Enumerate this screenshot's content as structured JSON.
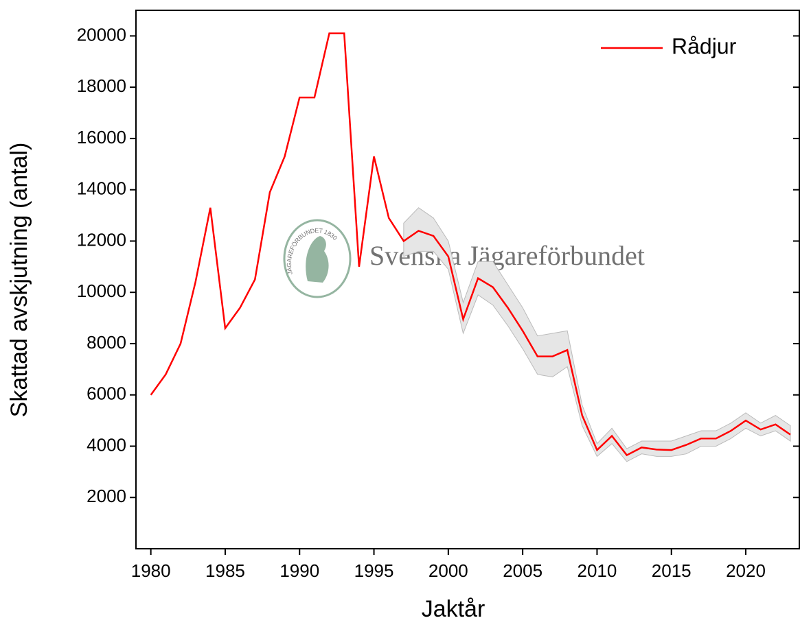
{
  "chart_data": {
    "type": "line",
    "xlabel": "Jaktår",
    "ylabel": "Skattad avskjutning (antal)",
    "watermark": "Svenska Jägareförbundet",
    "watermark_logo": "JÄGAREFÖRBUNDET 1830",
    "x": [
      1980,
      1981,
      1982,
      1983,
      1984,
      1985,
      1986,
      1987,
      1988,
      1989,
      1990,
      1991,
      1992,
      1993,
      1994,
      1995,
      1996,
      1997,
      1998,
      1999,
      2000,
      2001,
      2002,
      2003,
      2004,
      2005,
      2006,
      2007,
      2008,
      2009,
      2010,
      2011,
      2012,
      2013,
      2014,
      2015,
      2016,
      2017,
      2018,
      2019,
      2020,
      2021,
      2022,
      2023
    ],
    "series": [
      {
        "name": "Rådjur",
        "color": "#ff0000",
        "values": [
          6000,
          6800,
          8000,
          10400,
          13300,
          8600,
          9400,
          10500,
          13900,
          15300,
          17600,
          17600,
          20100,
          20100,
          11000,
          15300,
          12900,
          12000,
          12400,
          12200,
          11400,
          8950,
          10550,
          10200,
          9400,
          8500,
          7500,
          7500,
          7750,
          5200,
          3850,
          4400,
          3650,
          3950,
          3870,
          3850,
          4050,
          4300,
          4300,
          4600,
          5000,
          4650,
          4850,
          4450
        ]
      }
    ],
    "band": {
      "color": "#e6e6e6",
      "x": [
        1997,
        1998,
        1999,
        2000,
        2001,
        2002,
        2003,
        2004,
        2005,
        2006,
        2007,
        2008,
        2009,
        2010,
        2011,
        2012,
        2013,
        2014,
        2015,
        2016,
        2017,
        2018,
        2019,
        2020,
        2021,
        2022,
        2023
      ],
      "lower": [
        11400,
        11600,
        11600,
        10900,
        8400,
        9900,
        9500,
        8700,
        7800,
        6800,
        6700,
        7100,
        4800,
        3600,
        4100,
        3400,
        3700,
        3600,
        3600,
        3700,
        4000,
        4000,
        4300,
        4700,
        4400,
        4600,
        4200
      ],
      "upper": [
        12700,
        13300,
        12900,
        12000,
        9600,
        11200,
        11200,
        10300,
        9400,
        8300,
        8400,
        8500,
        5600,
        4100,
        4700,
        3900,
        4200,
        4200,
        4200,
        4400,
        4600,
        4600,
        4900,
        5300,
        4900,
        5200,
        4800
      ]
    },
    "xlim": [
      1979,
      2023.6
    ],
    "ylim": [
      0,
      21000
    ],
    "xticks": [
      1980,
      1985,
      1990,
      1995,
      2000,
      2005,
      2010,
      2015,
      2020
    ],
    "yticks": [
      2000,
      4000,
      6000,
      8000,
      10000,
      12000,
      14000,
      16000,
      18000,
      20000
    ],
    "legend": "upper right"
  }
}
